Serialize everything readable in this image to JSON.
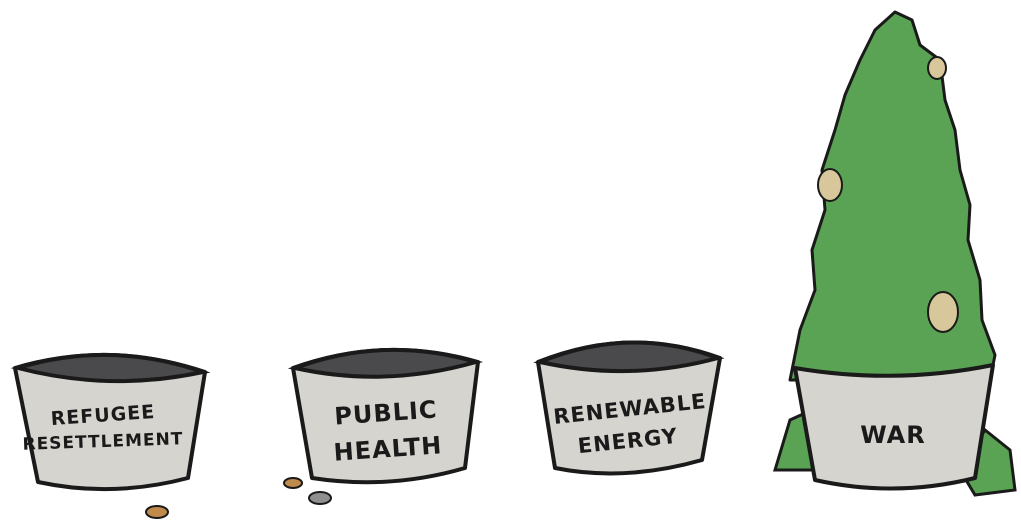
{
  "buckets": [
    {
      "label": [
        "REFUGEE",
        "RESETTLEMENT"
      ]
    },
    {
      "label": [
        "PUBLIC",
        "HEALTH"
      ]
    },
    {
      "label": [
        "RENEWABLE",
        "ENERGY"
      ]
    },
    {
      "label": [
        "WAR"
      ]
    }
  ]
}
